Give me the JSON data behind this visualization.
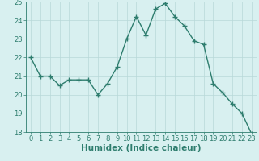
{
  "x": [
    0,
    1,
    2,
    3,
    4,
    5,
    6,
    7,
    8,
    9,
    10,
    11,
    12,
    13,
    14,
    15,
    16,
    17,
    18,
    19,
    20,
    21,
    22,
    23
  ],
  "y": [
    22.0,
    21.0,
    21.0,
    20.5,
    20.8,
    20.8,
    20.8,
    20.0,
    20.6,
    21.5,
    23.0,
    24.2,
    23.2,
    24.6,
    24.9,
    24.2,
    23.7,
    22.9,
    22.7,
    20.6,
    20.1,
    19.5,
    19.0,
    17.9
  ],
  "line_color": "#2e7d6e",
  "marker": "+",
  "marker_size": 4,
  "bg_color": "#d8f0f0",
  "grid_color": "#b8d8d8",
  "axis_color": "#2e7d6e",
  "xlabel": "Humidex (Indice chaleur)",
  "ylim": [
    18,
    25
  ],
  "xlim_min": -0.5,
  "xlim_max": 23.5,
  "yticks": [
    18,
    19,
    20,
    21,
    22,
    23,
    24,
    25
  ],
  "xticks": [
    0,
    1,
    2,
    3,
    4,
    5,
    6,
    7,
    8,
    9,
    10,
    11,
    12,
    13,
    14,
    15,
    16,
    17,
    18,
    19,
    20,
    21,
    22,
    23
  ],
  "xlabel_color": "#2e7d6e",
  "tick_color": "#2e7d6e",
  "tick_fontsize": 6.0,
  "xlabel_fontsize": 7.5,
  "linewidth": 1.0
}
